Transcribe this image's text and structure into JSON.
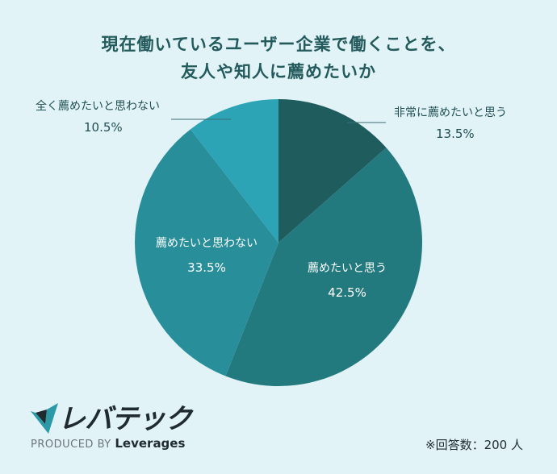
{
  "header": {
    "title_line1": "現在働いているユーザー企業で働くことを、",
    "title_line2": "友人や知人に薦めたいか"
  },
  "chart_data": {
    "type": "pie",
    "title": "現在働いているユーザー企業で働くことを、友人や知人に薦めたいか",
    "slices": [
      {
        "label": "非常に薦めたいと思う",
        "value": 13.5,
        "display": "13.5%",
        "color": "#1e5c5e"
      },
      {
        "label": "薦めたいと思う",
        "value": 42.5,
        "display": "42.5%",
        "color": "#227a7e"
      },
      {
        "label": "薦めたいと思わない",
        "value": 33.5,
        "display": "33.5%",
        "color": "#288f9a"
      },
      {
        "label": "全く薦めたいと思わない",
        "value": 10.5,
        "display": "10.5%",
        "color": "#2ca4b6"
      }
    ]
  },
  "logo": {
    "brand": "レバテック",
    "produced_prefix": "PRODUCED BY",
    "produced_company": "Leverages"
  },
  "footer": {
    "note": "※回答数：200 人"
  }
}
